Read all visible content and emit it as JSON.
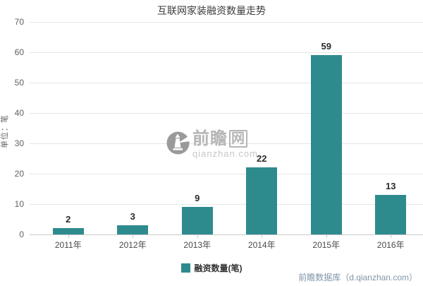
{
  "title": "互联网家装融资数量走势",
  "chart_data": {
    "type": "bar",
    "title": "互联网家装融资数量走势",
    "categories": [
      "2011年",
      "2012年",
      "2013年",
      "2014年",
      "2015年",
      "2016年"
    ],
    "values": [
      2,
      3,
      9,
      22,
      59,
      13
    ],
    "series_name": "融资数量(笔)",
    "xlabel": "",
    "ylabel": "单位：笔",
    "ylim": [
      0,
      70
    ],
    "ytick_step": 10,
    "grid": true,
    "legend_position": "bottom",
    "bar_color": "#2e8b8d",
    "value_labels_shown": true
  },
  "y_axis": {
    "title": "单位：笔"
  },
  "legend": {
    "label": "融资数量(笔)",
    "swatch_color": "#2e8b8d"
  },
  "watermark": {
    "logo_icon": "lighthouse-in-circle",
    "brand_prefix": "前瞻",
    "brand_suffix": "网",
    "domain": "qianzhan.com"
  },
  "footer": {
    "source": "前瞻数据库（d.qianzhan.com）"
  },
  "colors": {
    "bar": "#2e8b8d",
    "gridline": "#e6e6e6",
    "axis_line": "#c9c9c9",
    "title_text": "#3c3c3c",
    "tick_text": "#606060",
    "value_text": "#2b2b2b",
    "footer_text": "#8095a8",
    "watermark_gray": "#b5b5b5"
  }
}
